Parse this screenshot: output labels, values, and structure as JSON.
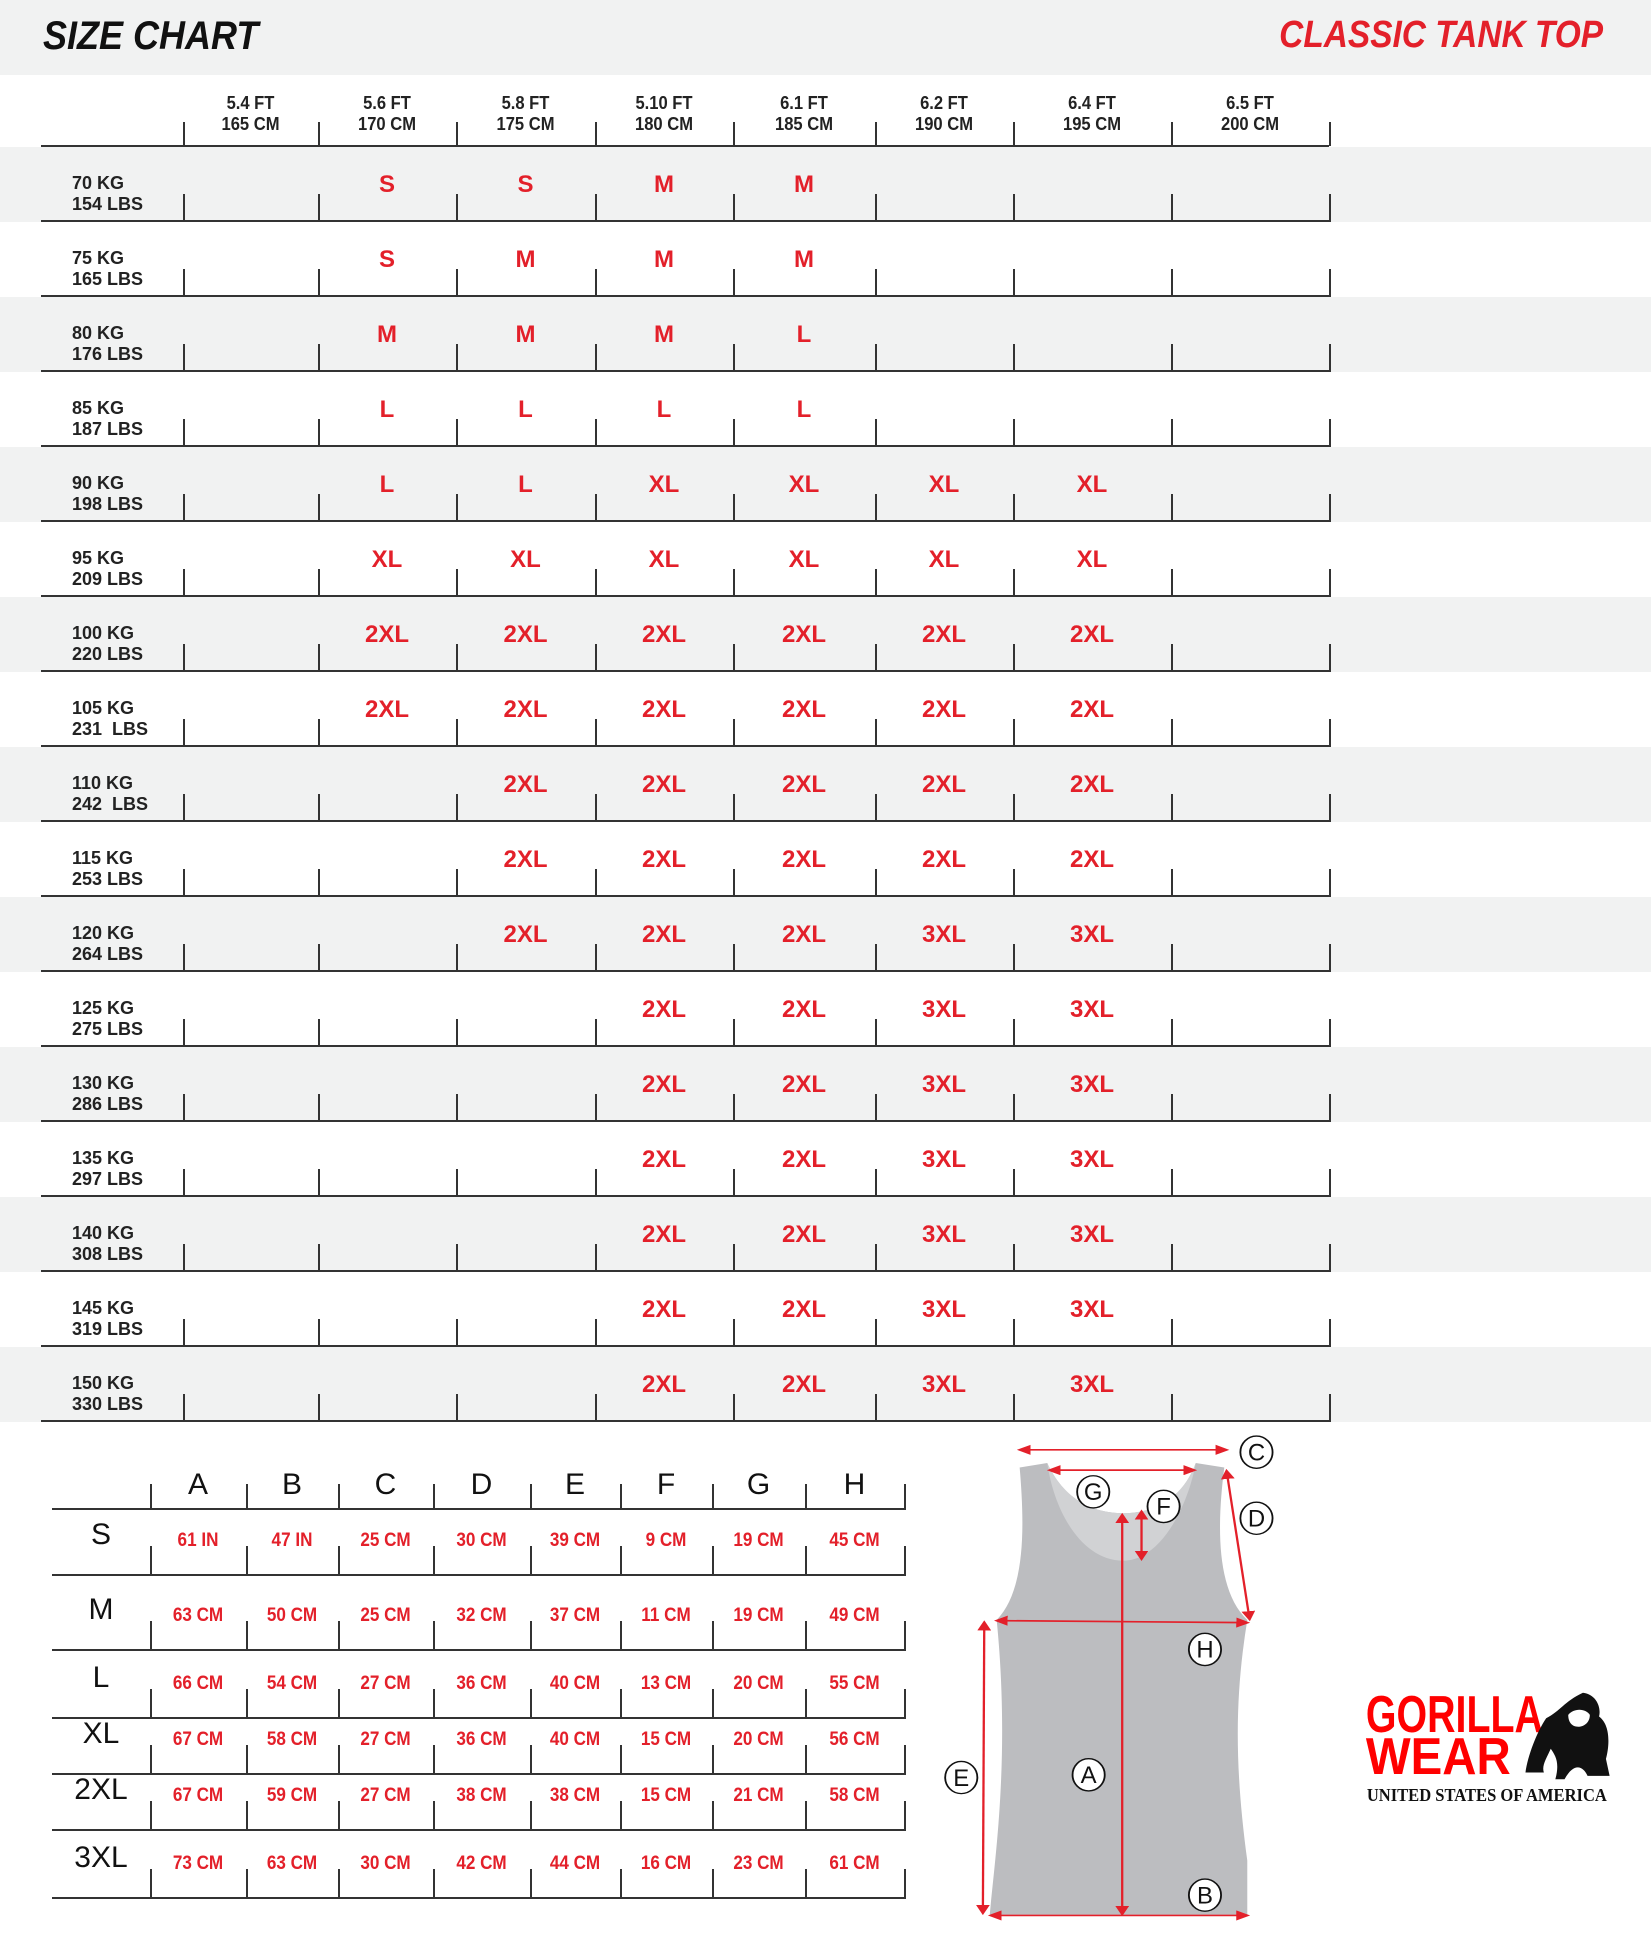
{
  "header": {
    "title": "SIZE CHART",
    "product": "CLASSIC TANK TOP"
  },
  "colors": {
    "accent": "#e3202a",
    "band": "#f1f2f2",
    "garment": "#bcbdc0"
  },
  "size_chart": {
    "heights": [
      {
        "ft": "5.4 FT",
        "cm": "165 CM"
      },
      {
        "ft": "5.6 FT",
        "cm": "170 CM"
      },
      {
        "ft": "5.8 FT",
        "cm": "175 CM"
      },
      {
        "ft": "5.10 FT",
        "cm": "180 CM"
      },
      {
        "ft": "6.1 FT",
        "cm": "185 CM"
      },
      {
        "ft": "6.2 FT",
        "cm": "190 CM"
      },
      {
        "ft": "6.4 FT",
        "cm": "195 CM"
      },
      {
        "ft": "6.5 FT",
        "cm": "200 CM"
      }
    ],
    "rows": [
      {
        "kg": "70 KG",
        "lbs": "154 LBS",
        "sizes": [
          "",
          "S",
          "S",
          "M",
          "M",
          "",
          "",
          ""
        ]
      },
      {
        "kg": "75 KG",
        "lbs": "165 LBS",
        "sizes": [
          "",
          "S",
          "M",
          "M",
          "M",
          "",
          "",
          ""
        ]
      },
      {
        "kg": "80 KG",
        "lbs": "176 LBS",
        "sizes": [
          "",
          "M",
          "M",
          "M",
          "L",
          "",
          "",
          ""
        ]
      },
      {
        "kg": "85 KG",
        "lbs": "187 LBS",
        "sizes": [
          "",
          "L",
          "L",
          "L",
          "L",
          "",
          "",
          ""
        ]
      },
      {
        "kg": "90 KG",
        "lbs": "198 LBS",
        "sizes": [
          "",
          "L",
          "L",
          "XL",
          "XL",
          "XL",
          "XL",
          ""
        ]
      },
      {
        "kg": "95 KG",
        "lbs": "209 LBS",
        "sizes": [
          "",
          "XL",
          "XL",
          "XL",
          "XL",
          "XL",
          "XL",
          ""
        ]
      },
      {
        "kg": "100 KG",
        "lbs": "220 LBS",
        "sizes": [
          "",
          "2XL",
          "2XL",
          "2XL",
          "2XL",
          "2XL",
          "2XL",
          ""
        ]
      },
      {
        "kg": "105 KG",
        "lbs": "231  LBS",
        "sizes": [
          "",
          "2XL",
          "2XL",
          "2XL",
          "2XL",
          "2XL",
          "2XL",
          ""
        ]
      },
      {
        "kg": "110 KG",
        "lbs": "242  LBS",
        "sizes": [
          "",
          "",
          "2XL",
          "2XL",
          "2XL",
          "2XL",
          "2XL",
          ""
        ]
      },
      {
        "kg": "115 KG",
        "lbs": "253 LBS",
        "sizes": [
          "",
          "",
          "2XL",
          "2XL",
          "2XL",
          "2XL",
          "2XL",
          ""
        ]
      },
      {
        "kg": "120 KG",
        "lbs": "264 LBS",
        "sizes": [
          "",
          "",
          "2XL",
          "2XL",
          "2XL",
          "3XL",
          "3XL",
          ""
        ]
      },
      {
        "kg": "125 KG",
        "lbs": "275 LBS",
        "sizes": [
          "",
          "",
          "",
          "2XL",
          "2XL",
          "3XL",
          "3XL",
          ""
        ]
      },
      {
        "kg": "130 KG",
        "lbs": "286 LBS",
        "sizes": [
          "",
          "",
          "",
          "2XL",
          "2XL",
          "3XL",
          "3XL",
          ""
        ]
      },
      {
        "kg": "135 KG",
        "lbs": "297 LBS",
        "sizes": [
          "",
          "",
          "",
          "2XL",
          "2XL",
          "3XL",
          "3XL",
          ""
        ]
      },
      {
        "kg": "140 KG",
        "lbs": "308 LBS",
        "sizes": [
          "",
          "",
          "",
          "2XL",
          "2XL",
          "3XL",
          "3XL",
          ""
        ]
      },
      {
        "kg": "145 KG",
        "lbs": "319 LBS",
        "sizes": [
          "",
          "",
          "",
          "2XL",
          "2XL",
          "3XL",
          "3XL",
          ""
        ]
      },
      {
        "kg": "150 KG",
        "lbs": "330 LBS",
        "sizes": [
          "",
          "",
          "",
          "2XL",
          "2XL",
          "3XL",
          "3XL",
          ""
        ]
      }
    ]
  },
  "measurements": {
    "columns": [
      "A",
      "B",
      "C",
      "D",
      "E",
      "F",
      "G",
      "H"
    ],
    "rows": [
      {
        "size": "S",
        "values": [
          "61 IN",
          "47 IN",
          "25 CM",
          "30 CM",
          "39 CM",
          "9 CM",
          "19 CM",
          "45 CM"
        ]
      },
      {
        "size": "M",
        "values": [
          "63 CM",
          "50 CM",
          "25 CM",
          "32 CM",
          "37 CM",
          "11 CM",
          "19 CM",
          "49 CM"
        ]
      },
      {
        "size": "L",
        "values": [
          "66 CM",
          "54 CM",
          "27 CM",
          "36 CM",
          "40 CM",
          "13 CM",
          "20 CM",
          "55 CM"
        ]
      },
      {
        "size": "XL",
        "values": [
          "67 CM",
          "58 CM",
          "27 CM",
          "36 CM",
          "40 CM",
          "15 CM",
          "20 CM",
          "56 CM"
        ]
      },
      {
        "size": "2XL",
        "values": [
          "67 CM",
          "59 CM",
          "27 CM",
          "38 CM",
          "38 CM",
          "15 CM",
          "21 CM",
          "58 CM"
        ]
      },
      {
        "size": "3XL",
        "values": [
          "73 CM",
          "63 CM",
          "30 CM",
          "42 CM",
          "44 CM",
          "16 CM",
          "23 CM",
          "61 CM"
        ]
      }
    ]
  },
  "diagram": {
    "labels": [
      "A",
      "B",
      "C",
      "D",
      "E",
      "F",
      "G",
      "H"
    ]
  },
  "logo": {
    "line1": "GORILLA",
    "line2": "WEAR",
    "tagline": "UNITED STATES OF AMERICA"
  }
}
